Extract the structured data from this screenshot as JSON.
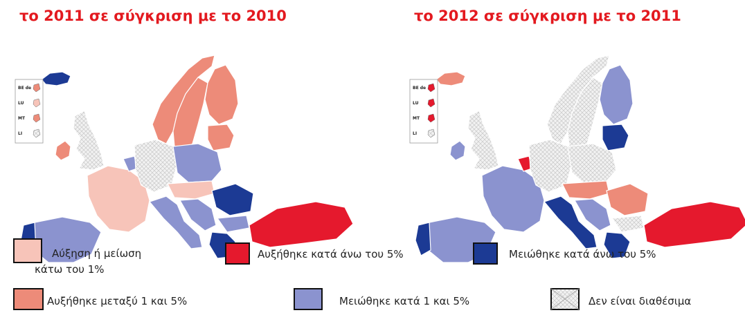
{
  "maps": [
    {
      "title": "το 2011 σε σύγκριση με το 2010"
    },
    {
      "title": "το 2012 σε σύγκριση με το 2011"
    }
  ],
  "inset_labels": [
    "BE de",
    "LU",
    "MT",
    "LI"
  ],
  "legend": [
    {
      "lines": [
        "Αύξηση ή μείωση",
        "κάτω του 1%"
      ],
      "color": "#f7c4b9"
    },
    {
      "lines": [
        "Αυξήθηκε κατά άνω του 5%"
      ],
      "color": "#e5192d"
    },
    {
      "lines": [
        "Μειώθηκε κατά άνω του 5%"
      ],
      "color": "#1c3a94"
    },
    {
      "lines": [
        "Αυξήθηκε μεταξύ 1 και 5%"
      ],
      "color": "#ed8b79"
    },
    {
      "lines": [
        "Μειώθηκε κατά 1 και 5%"
      ],
      "color": "#8b93cf"
    },
    {
      "lines": [
        "Δεν είναι διαθέσιμα"
      ],
      "color": "#f4f4f4",
      "hatched": true
    }
  ]
}
